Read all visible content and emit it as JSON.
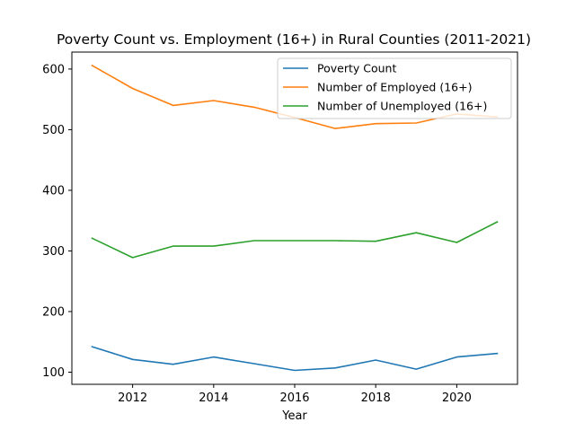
{
  "chart_data": {
    "type": "line",
    "title": "Poverty Count vs. Employment (16+) in Rural Counties (2011-2021)",
    "xlabel": "Year",
    "ylabel": "",
    "x": [
      2011,
      2012,
      2013,
      2014,
      2015,
      2016,
      2017,
      2018,
      2019,
      2020,
      2021
    ],
    "xlim": [
      2010.5,
      2021.5
    ],
    "ylim": [
      80,
      628
    ],
    "xticks": [
      2012,
      2014,
      2016,
      2018,
      2020
    ],
    "yticks": [
      100,
      200,
      300,
      400,
      500,
      600
    ],
    "grid": false,
    "legend_position": "upper right",
    "series": [
      {
        "name": "Poverty Count",
        "color": "#1f77b4",
        "values": [
          142,
          121,
          113,
          125,
          114,
          103,
          107,
          120,
          105,
          125,
          131
        ]
      },
      {
        "name": "Number of Employed (16+)",
        "color": "#ff7f0e",
        "values": [
          606,
          568,
          540,
          548,
          537,
          520,
          502,
          510,
          511,
          526,
          521
        ]
      },
      {
        "name": "Number of Unemployed (16+)",
        "color": "#2ca02c",
        "values": [
          321,
          289,
          308,
          308,
          317,
          317,
          317,
          316,
          330,
          314,
          348
        ]
      }
    ]
  }
}
